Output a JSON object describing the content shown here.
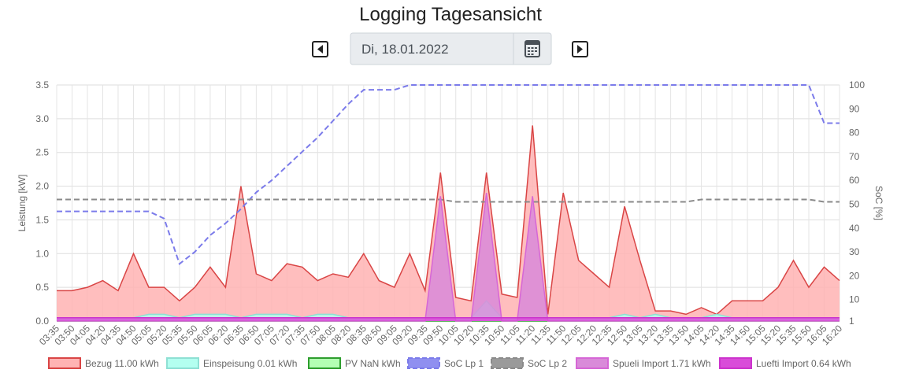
{
  "header": {
    "title": "Logging Tagesansicht",
    "date": "Di, 18.01.2022"
  },
  "chart_data": {
    "type": "area",
    "ylabel": "Leistung [kW]",
    "y2label": "SoC [%]",
    "categories": [
      "03:35",
      "03:50",
      "04:05",
      "04:20",
      "04:35",
      "04:50",
      "05:05",
      "05:20",
      "05:35",
      "05:50",
      "06:05",
      "06:20",
      "06:35",
      "06:50",
      "07:05",
      "07:20",
      "07:35",
      "07:50",
      "08:05",
      "08:20",
      "08:35",
      "08:50",
      "09:05",
      "09:20",
      "09:35",
      "09:50",
      "10:05",
      "10:20",
      "10:35",
      "10:50",
      "11:05",
      "11:20",
      "11:35",
      "11:50",
      "12:05",
      "12:20",
      "12:35",
      "12:50",
      "13:05",
      "13:20",
      "13:35",
      "13:50",
      "14:05",
      "14:20",
      "14:35",
      "14:50",
      "15:05",
      "15:20",
      "15:35",
      "15:50",
      "16:05",
      "16:20"
    ],
    "ylim": [
      0,
      3.5
    ],
    "yticks": [
      {
        "value": 0,
        "label": "0.0"
      },
      0.5,
      {
        "value": 1,
        "label": "1.0"
      },
      1.5,
      {
        "value": 2,
        "label": "2.0"
      },
      2.5,
      {
        "value": 3,
        "label": "3.0"
      },
      3.5
    ],
    "y2lim": [
      1,
      100
    ],
    "y2ticks": [
      1,
      10,
      20,
      30,
      40,
      50,
      60,
      70,
      80,
      90,
      100
    ],
    "grid": true,
    "series": [
      {
        "name": "Bezug 11.00 kWh",
        "color": "#d94545",
        "fill": "#ffb3b3",
        "dashed": false,
        "values": [
          0.45,
          0.45,
          0.5,
          0.6,
          0.45,
          1.0,
          0.5,
          0.5,
          0.3,
          0.5,
          0.8,
          0.5,
          2.0,
          0.7,
          0.6,
          0.85,
          0.8,
          0.6,
          0.7,
          0.65,
          1.0,
          0.6,
          0.5,
          1.0,
          0.45,
          2.2,
          0.35,
          0.3,
          2.2,
          0.4,
          0.35,
          2.9,
          0.1,
          1.9,
          0.9,
          0.7,
          0.5,
          1.7,
          0.9,
          0.15,
          0.15,
          0.1,
          0.2,
          0.1,
          0.3,
          0.3,
          0.3,
          0.5,
          0.9,
          0.5,
          0.8,
          0.6
        ]
      },
      {
        "name": "Einspeisung 0.01 kWh",
        "color": "#8ee0d4",
        "fill": "#b3fff0",
        "dashed": false,
        "values": [
          0.05,
          0.05,
          0.05,
          0.05,
          0.05,
          0.05,
          0.1,
          0.1,
          0.05,
          0.1,
          0.1,
          0.1,
          0.05,
          0.1,
          0.1,
          0.1,
          0.05,
          0.1,
          0.1,
          0.05,
          0.05,
          0.05,
          0.05,
          0.05,
          0.05,
          0.05,
          0.05,
          0.05,
          0.3,
          0.05,
          0.05,
          0.05,
          0.05,
          0.05,
          0.05,
          0.05,
          0.05,
          0.1,
          0.05,
          0.1,
          0.05,
          0.05,
          0.05,
          0.1,
          0.05,
          0.05,
          0.05,
          0.05,
          0.05,
          0.05,
          0.05,
          0.05
        ]
      },
      {
        "name": "PV NaN kWh",
        "color": "#2e9e2e",
        "fill": "#b3ffb3",
        "dashed": false,
        "values": [
          0,
          0,
          0,
          0,
          0,
          0,
          0,
          0,
          0,
          0,
          0,
          0,
          0,
          0,
          0,
          0,
          0,
          0,
          0,
          0,
          0,
          0,
          0,
          0,
          0,
          0,
          0,
          0,
          0,
          0,
          0,
          0,
          0,
          0,
          0,
          0,
          0,
          0,
          0,
          0,
          0,
          0,
          0,
          0,
          0,
          0,
          0,
          0,
          0,
          0,
          0,
          0
        ]
      },
      {
        "name": "SoC Lp 1",
        "color": "#7b7bea",
        "fill": "#8f8ff0",
        "dashed": true,
        "axis": "y2",
        "values": [
          47,
          47,
          47,
          47,
          47,
          47,
          47,
          44,
          25,
          30,
          37,
          42,
          48,
          55,
          60,
          66,
          72,
          78,
          85,
          92,
          98,
          98,
          98,
          100,
          100,
          100,
          100,
          100,
          100,
          100,
          100,
          100,
          100,
          100,
          100,
          100,
          100,
          100,
          100,
          100,
          100,
          100,
          100,
          100,
          100,
          100,
          100,
          100,
          100,
          100,
          84,
          84
        ]
      },
      {
        "name": "SoC Lp 2",
        "color": "#8a8a8a",
        "fill": "#9a9a9a",
        "dashed": true,
        "axis": "y2",
        "values": [
          52,
          52,
          52,
          52,
          52,
          52,
          52,
          52,
          52,
          52,
          52,
          52,
          52,
          52,
          52,
          52,
          52,
          52,
          52,
          52,
          52,
          52,
          52,
          52,
          52,
          52,
          51,
          51,
          51,
          51,
          51,
          51,
          51,
          51,
          51,
          51,
          51,
          51,
          51,
          51,
          51,
          51,
          52,
          52,
          52,
          52,
          52,
          52,
          52,
          52,
          51,
          51
        ]
      },
      {
        "name": "Spueli Import 1.71 kWh",
        "color": "#d666d6",
        "fill": "#d98ad9",
        "dashed": false,
        "values": [
          0,
          0,
          0,
          0,
          0,
          0,
          0,
          0,
          0,
          0,
          0,
          0,
          0,
          0,
          0,
          0,
          0,
          0,
          0,
          0,
          0,
          0,
          0,
          0,
          0,
          1.85,
          0,
          0,
          1.9,
          0,
          0,
          1.85,
          0,
          0,
          0,
          0,
          0,
          0,
          0,
          0,
          0,
          0,
          0,
          0,
          0,
          0,
          0,
          0,
          0,
          0,
          0,
          0
        ]
      },
      {
        "name": "Luefti Import 0.64 kWh",
        "color": "#cc33cc",
        "fill": "#d94cd9",
        "dashed": false,
        "values": [
          0.05,
          0.05,
          0.05,
          0.05,
          0.05,
          0.05,
          0.05,
          0.05,
          0.05,
          0.05,
          0.05,
          0.05,
          0.05,
          0.05,
          0.05,
          0.05,
          0.05,
          0.05,
          0.05,
          0.05,
          0.05,
          0.05,
          0.05,
          0.05,
          0.05,
          0.05,
          0.05,
          0.05,
          0.05,
          0.05,
          0.05,
          0.05,
          0.05,
          0.05,
          0.05,
          0.05,
          0.05,
          0.05,
          0.05,
          0.05,
          0.05,
          0.05,
          0.05,
          0.05,
          0.05,
          0.05,
          0.05,
          0.05,
          0.05,
          0.05,
          0.05,
          0.05
        ]
      }
    ]
  }
}
